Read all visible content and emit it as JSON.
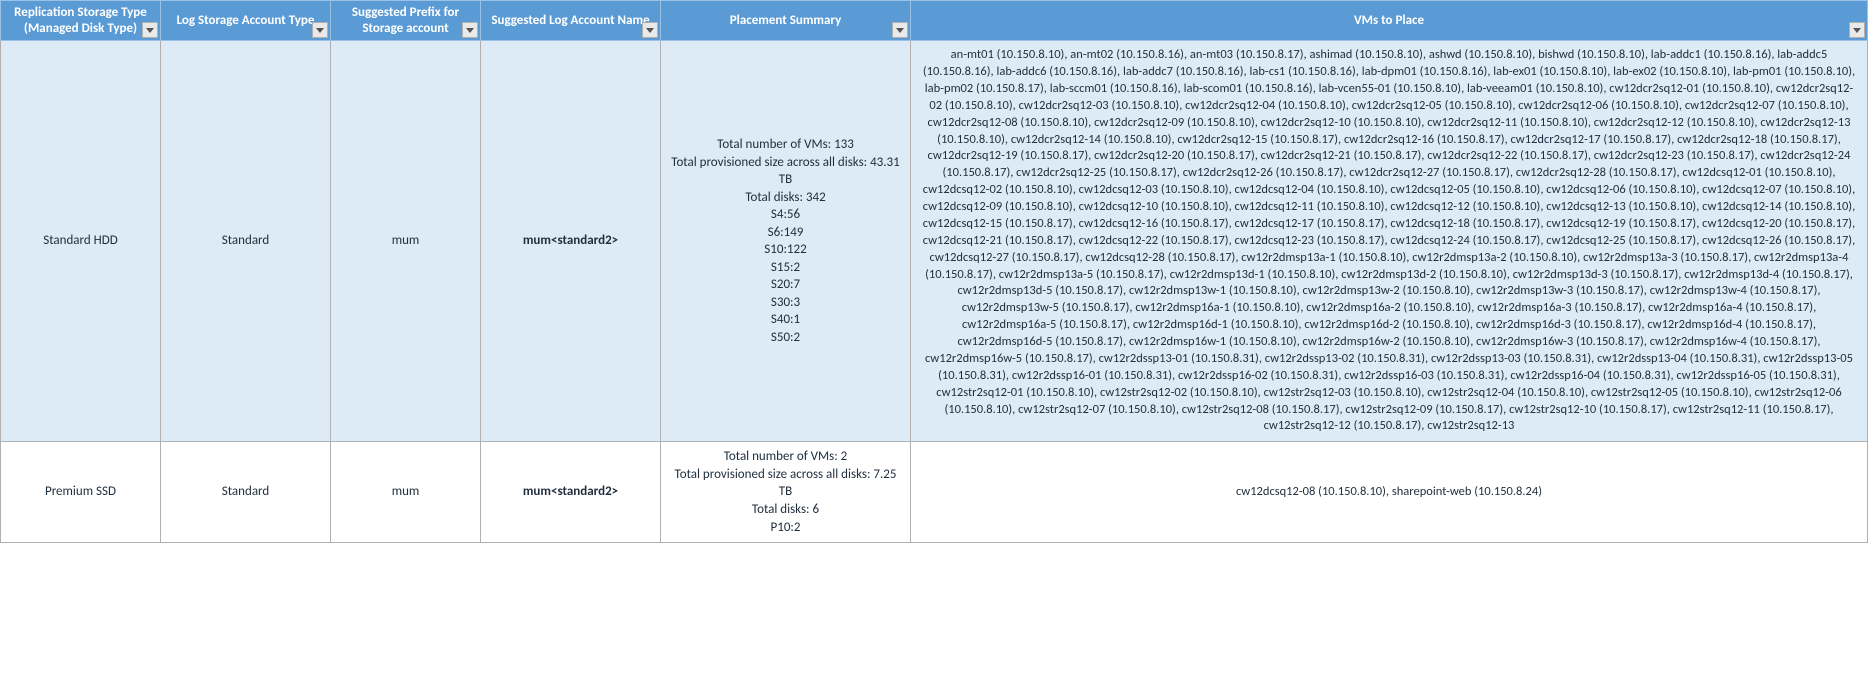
{
  "colors": {
    "header_bg": "#5b9bd5",
    "header_text": "#ffffff",
    "row_highlight_bg": "#ddebf7",
    "row_plain_bg": "#ffffff",
    "border_color": "#b0b0b0",
    "text_color": "#1f2d3d"
  },
  "columns": [
    {
      "label": "Replication Storage Type\n(Managed Disk Type)"
    },
    {
      "label": "Log Storage Account Type"
    },
    {
      "label": "Suggested Prefix for Storage account"
    },
    {
      "label": "Suggested Log Account  Name"
    },
    {
      "label": "Placement Summary"
    },
    {
      "label": "VMs to Place"
    }
  ],
  "rows": [
    {
      "highlight": true,
      "replication_storage_type": "Standard HDD",
      "log_storage_account_type": "Standard",
      "suggested_prefix": "mum",
      "suggested_log_account": "mum<standard2>",
      "placement_summary": "Total number of VMs: 133\nTotal provisioned size across all disks: 43.31 TB\nTotal disks: 342\nS4:56\nS6:149\nS10:122\nS15:2\nS20:7\nS30:3\nS40:1\nS50:2",
      "vms_to_place": "an-mt01 (10.150.8.10), an-mt02 (10.150.8.16), an-mt03 (10.150.8.17), ashimad (10.150.8.10), ashwd (10.150.8.10), bishwd (10.150.8.10), lab-addc1 (10.150.8.16), lab-addc5 (10.150.8.16), lab-addc6 (10.150.8.16), lab-addc7 (10.150.8.16), lab-cs1 (10.150.8.16), lab-dpm01 (10.150.8.16), lab-ex01 (10.150.8.10), lab-ex02 (10.150.8.10), lab-pm01 (10.150.8.10), lab-pm02 (10.150.8.17), lab-sccm01 (10.150.8.16), lab-scom01 (10.150.8.16), lab-vcen55-01 (10.150.8.10), lab-veeam01 (10.150.8.10), cw12dcr2sq12-01 (10.150.8.10), cw12dcr2sq12-02 (10.150.8.10), cw12dcr2sq12-03 (10.150.8.10), cw12dcr2sq12-04 (10.150.8.10), cw12dcr2sq12-05 (10.150.8.10), cw12dcr2sq12-06 (10.150.8.10), cw12dcr2sq12-07 (10.150.8.10), cw12dcr2sq12-08 (10.150.8.10), cw12dcr2sq12-09 (10.150.8.10), cw12dcr2sq12-10 (10.150.8.10), cw12dcr2sq12-11 (10.150.8.10), cw12dcr2sq12-12 (10.150.8.10), cw12dcr2sq12-13 (10.150.8.10), cw12dcr2sq12-14 (10.150.8.10), cw12dcr2sq12-15 (10.150.8.17), cw12dcr2sq12-16 (10.150.8.17), cw12dcr2sq12-17 (10.150.8.17), cw12dcr2sq12-18 (10.150.8.17), cw12dcr2sq12-19 (10.150.8.17), cw12dcr2sq12-20 (10.150.8.17), cw12dcr2sq12-21 (10.150.8.17), cw12dcr2sq12-22 (10.150.8.17), cw12dcr2sq12-23 (10.150.8.17), cw12dcr2sq12-24 (10.150.8.17), cw12dcr2sq12-25 (10.150.8.17), cw12dcr2sq12-26 (10.150.8.17), cw12dcr2sq12-27 (10.150.8.17), cw12dcr2sq12-28 (10.150.8.17), cw12dcsq12-01 (10.150.8.10), cw12dcsq12-02 (10.150.8.10), cw12dcsq12-03 (10.150.8.10), cw12dcsq12-04 (10.150.8.10), cw12dcsq12-05 (10.150.8.10), cw12dcsq12-06 (10.150.8.10), cw12dcsq12-07 (10.150.8.10), cw12dcsq12-09 (10.150.8.10), cw12dcsq12-10 (10.150.8.10), cw12dcsq12-11 (10.150.8.10), cw12dcsq12-12 (10.150.8.10), cw12dcsq12-13 (10.150.8.10), cw12dcsq12-14 (10.150.8.10), cw12dcsq12-15 (10.150.8.17), cw12dcsq12-16 (10.150.8.17), cw12dcsq12-17 (10.150.8.17), cw12dcsq12-18 (10.150.8.17), cw12dcsq12-19 (10.150.8.17), cw12dcsq12-20 (10.150.8.17), cw12dcsq12-21 (10.150.8.17), cw12dcsq12-22 (10.150.8.17), cw12dcsq12-23 (10.150.8.17), cw12dcsq12-24 (10.150.8.17), cw12dcsq12-25 (10.150.8.17), cw12dcsq12-26 (10.150.8.17), cw12dcsq12-27 (10.150.8.17), cw12dcsq12-28 (10.150.8.17), cw12r2dmsp13a-1 (10.150.8.10), cw12r2dmsp13a-2 (10.150.8.10), cw12r2dmsp13a-3 (10.150.8.17), cw12r2dmsp13a-4 (10.150.8.17), cw12r2dmsp13a-5 (10.150.8.17), cw12r2dmsp13d-1 (10.150.8.10), cw12r2dmsp13d-2 (10.150.8.10), cw12r2dmsp13d-3 (10.150.8.17), cw12r2dmsp13d-4 (10.150.8.17), cw12r2dmsp13d-5 (10.150.8.17), cw12r2dmsp13w-1 (10.150.8.10), cw12r2dmsp13w-2 (10.150.8.10), cw12r2dmsp13w-3 (10.150.8.17), cw12r2dmsp13w-4 (10.150.8.17), cw12r2dmsp13w-5 (10.150.8.17), cw12r2dmsp16a-1 (10.150.8.10), cw12r2dmsp16a-2 (10.150.8.10), cw12r2dmsp16a-3 (10.150.8.17), cw12r2dmsp16a-4 (10.150.8.17), cw12r2dmsp16a-5 (10.150.8.17), cw12r2dmsp16d-1 (10.150.8.10), cw12r2dmsp16d-2 (10.150.8.10), cw12r2dmsp16d-3 (10.150.8.17), cw12r2dmsp16d-4 (10.150.8.17), cw12r2dmsp16d-5 (10.150.8.17), cw12r2dmsp16w-1 (10.150.8.10), cw12r2dmsp16w-2 (10.150.8.10), cw12r2dmsp16w-3 (10.150.8.17), cw12r2dmsp16w-4 (10.150.8.17), cw12r2dmsp16w-5 (10.150.8.17), cw12r2dssp13-01 (10.150.8.31), cw12r2dssp13-02 (10.150.8.31), cw12r2dssp13-03 (10.150.8.31), cw12r2dssp13-04 (10.150.8.31), cw12r2dssp13-05 (10.150.8.31), cw12r2dssp16-01 (10.150.8.31), cw12r2dssp16-02 (10.150.8.31), cw12r2dssp16-03 (10.150.8.31), cw12r2dssp16-04 (10.150.8.31), cw12r2dssp16-05 (10.150.8.31), cw12str2sq12-01 (10.150.8.10), cw12str2sq12-02 (10.150.8.10), cw12str2sq12-03 (10.150.8.10), cw12str2sq12-04 (10.150.8.10), cw12str2sq12-05 (10.150.8.10), cw12str2sq12-06 (10.150.8.10), cw12str2sq12-07 (10.150.8.10), cw12str2sq12-08 (10.150.8.17), cw12str2sq12-09 (10.150.8.17), cw12str2sq12-10 (10.150.8.17), cw12str2sq12-11 (10.150.8.17), cw12str2sq12-12 (10.150.8.17), cw12str2sq12-13"
    },
    {
      "highlight": false,
      "replication_storage_type": "Premium SSD",
      "log_storage_account_type": "Standard",
      "suggested_prefix": "mum",
      "suggested_log_account": "mum<standard2>",
      "placement_summary": "Total number of VMs: 2\nTotal provisioned size across all disks: 7.25 TB\nTotal disks: 6\nP10:2",
      "vms_to_place": "cw12dcsq12-08 (10.150.8.10), sharepoint-web (10.150.8.24)"
    }
  ]
}
